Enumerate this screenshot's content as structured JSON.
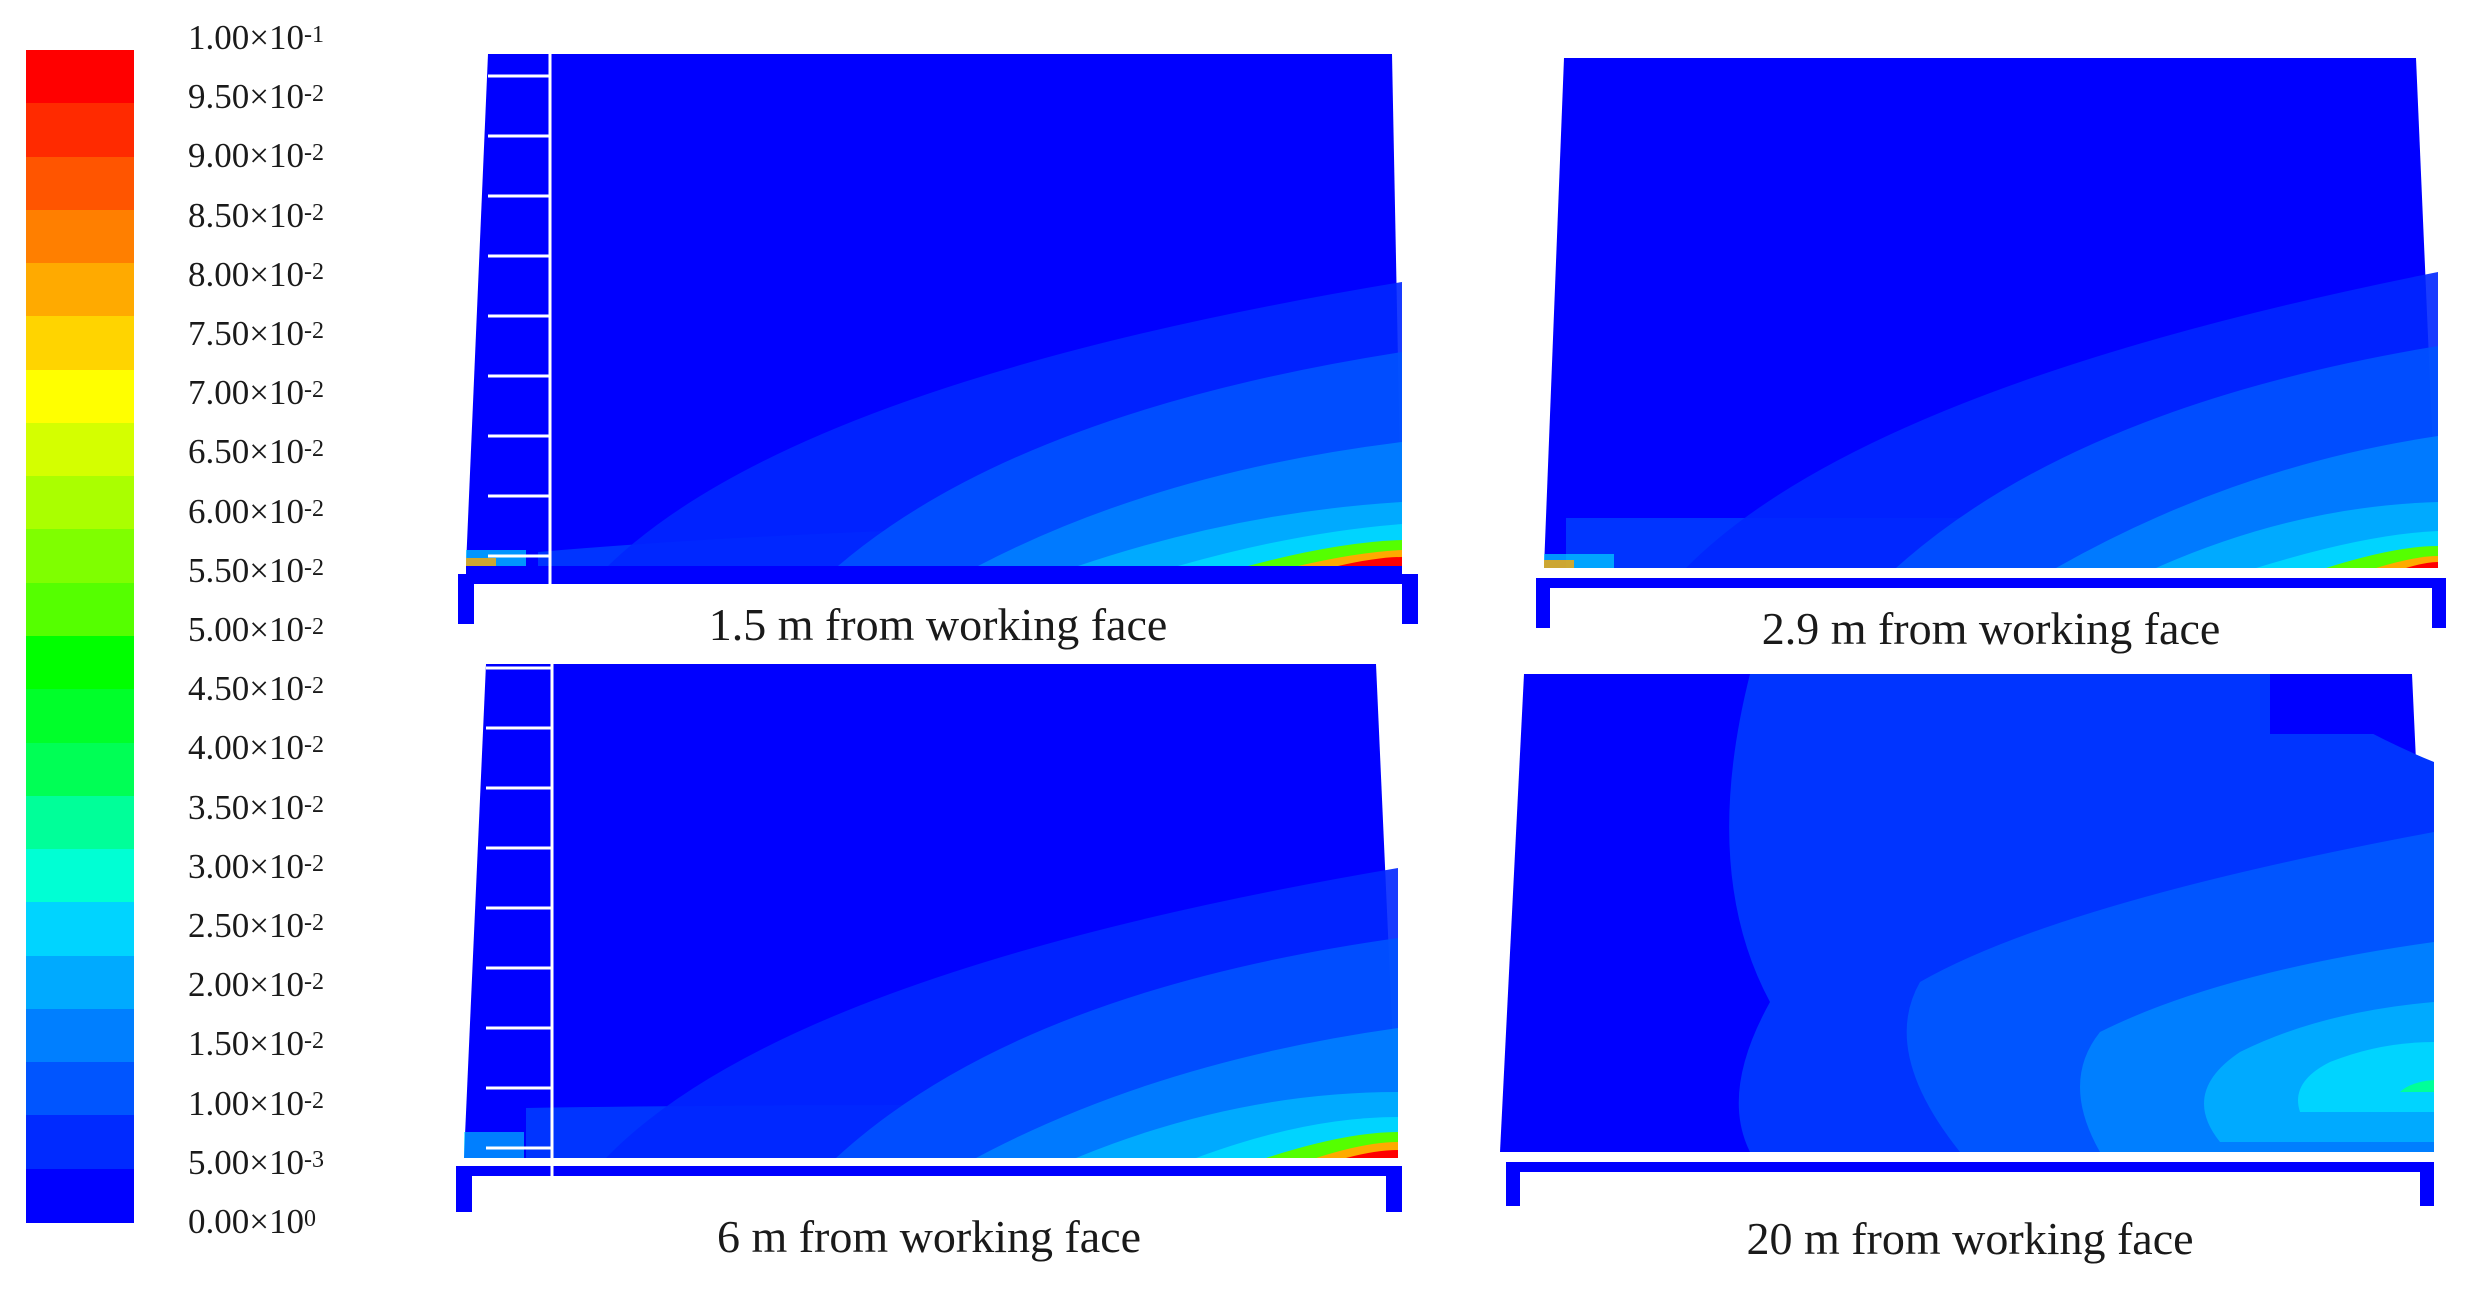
{
  "legend": {
    "colors": [
      "#ff0000",
      "#ff2a00",
      "#ff5500",
      "#ff7f00",
      "#ffaa00",
      "#ffd400",
      "#ffff00",
      "#d4ff00",
      "#aaff00",
      "#7fff00",
      "#55ff00",
      "#00ff00",
      "#00ff2a",
      "#00ff55",
      "#00ff99",
      "#00ffd4",
      "#00d4ff",
      "#00aaff",
      "#007fff",
      "#0055ff",
      "#002aff",
      "#0000ff"
    ],
    "ticks": [
      {
        "mantissa": "1.00",
        "exp": "-1"
      },
      {
        "mantissa": "9.50",
        "exp": "-2"
      },
      {
        "mantissa": "9.00",
        "exp": "-2"
      },
      {
        "mantissa": "8.50",
        "exp": "-2"
      },
      {
        "mantissa": "8.00",
        "exp": "-2"
      },
      {
        "mantissa": "7.50",
        "exp": "-2"
      },
      {
        "mantissa": "7.00",
        "exp": "-2"
      },
      {
        "mantissa": "6.50",
        "exp": "-2"
      },
      {
        "mantissa": "6.00",
        "exp": "-2"
      },
      {
        "mantissa": "5.50",
        "exp": "-2"
      },
      {
        "mantissa": "5.00",
        "exp": "-2"
      },
      {
        "mantissa": "4.50",
        "exp": "-2"
      },
      {
        "mantissa": "4.00",
        "exp": "-2"
      },
      {
        "mantissa": "3.50",
        "exp": "-2"
      },
      {
        "mantissa": "3.00",
        "exp": "-2"
      },
      {
        "mantissa": "2.50",
        "exp": "-2"
      },
      {
        "mantissa": "2.00",
        "exp": "-2"
      },
      {
        "mantissa": "1.50",
        "exp": "-2"
      },
      {
        "mantissa": "1.00",
        "exp": "-2"
      },
      {
        "mantissa": "5.00",
        "exp": "-3"
      },
      {
        "mantissa": "0.00",
        "exp": "0"
      }
    ]
  },
  "panels": [
    {
      "caption": "1.5 m from working face"
    },
    {
      "caption": "2.9 m from working face"
    },
    {
      "caption": "6 m from working face"
    },
    {
      "caption": "20 m from working face"
    }
  ]
}
